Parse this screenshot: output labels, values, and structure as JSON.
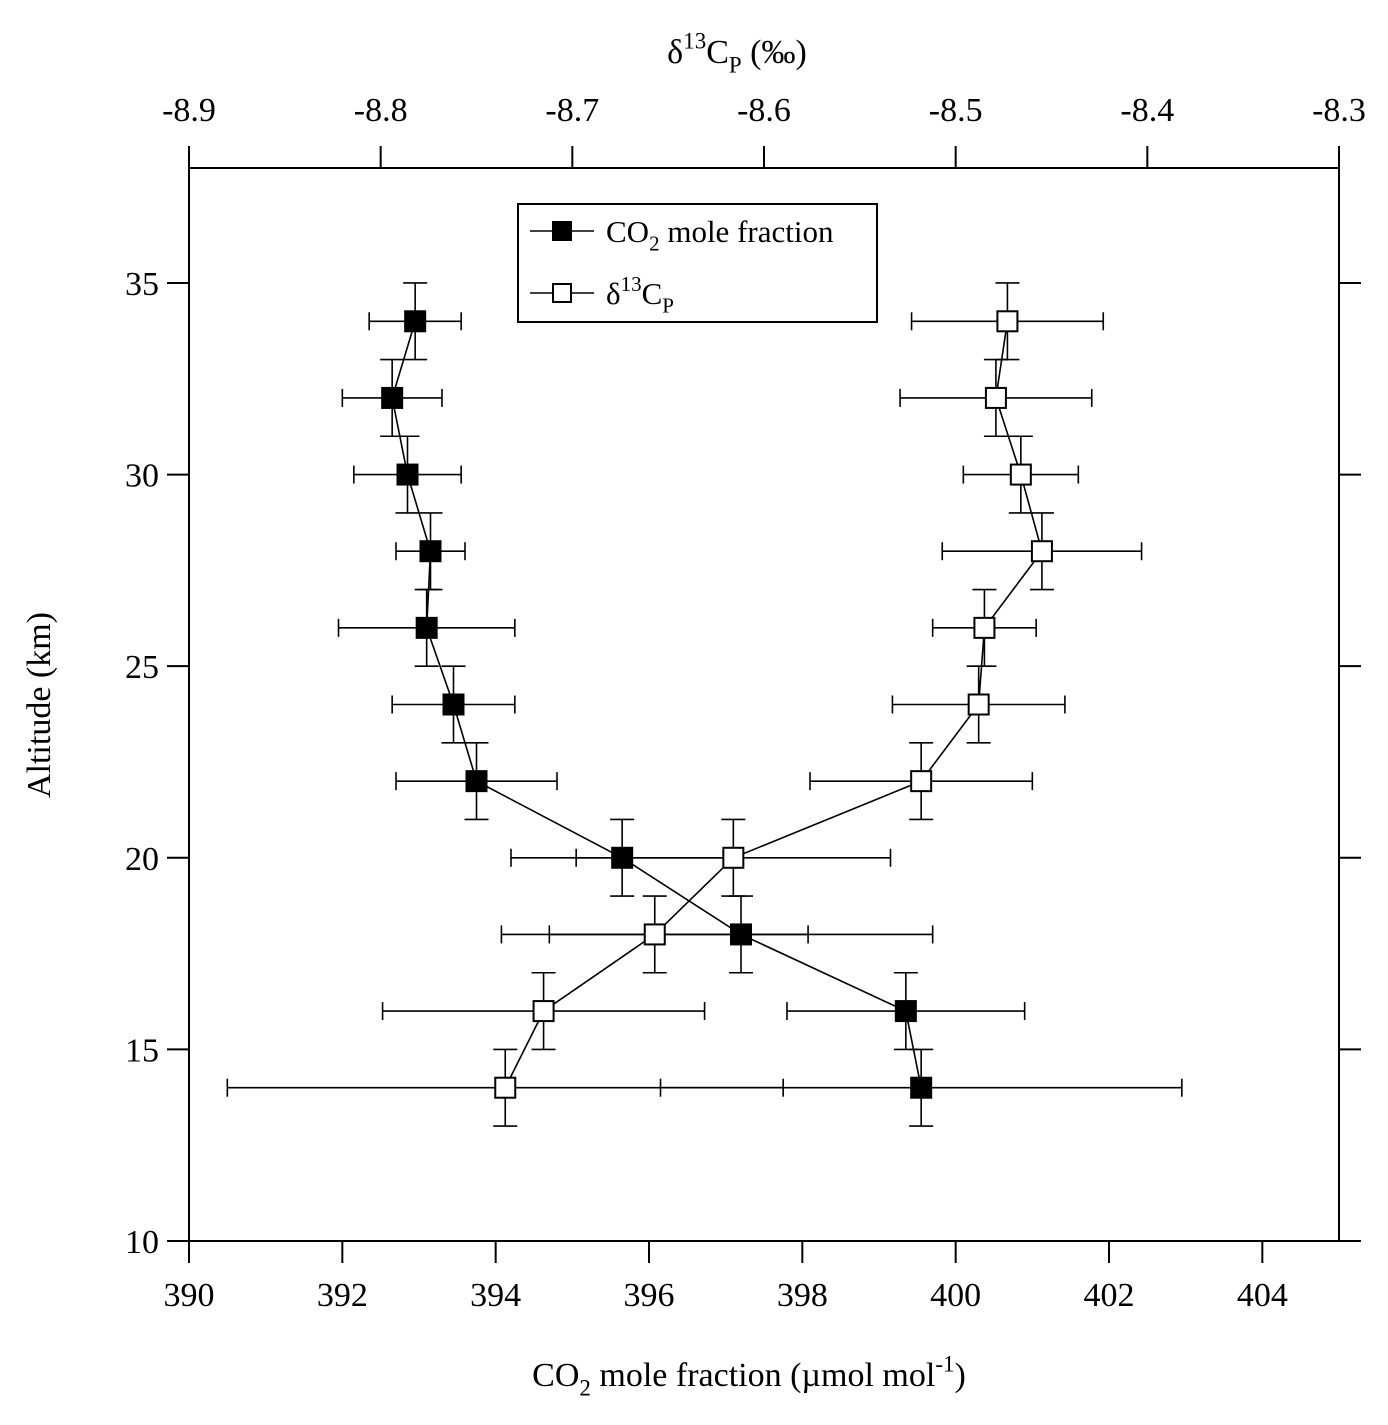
{
  "chart_data": {
    "type": "scatter",
    "ylabel": "Altitude (km)",
    "ylim": [
      10,
      38
    ],
    "yticks": [
      10,
      15,
      20,
      25,
      30,
      35
    ],
    "bottom_axis": {
      "label_main": "CO",
      "label_sub": "2",
      "label_rest": " mole fraction (µmol mol",
      "label_sup": "-1",
      "label_end": ")",
      "lim": [
        390,
        405
      ],
      "ticks": [
        390,
        392,
        394,
        396,
        398,
        400,
        402,
        404
      ]
    },
    "top_axis": {
      "label_main": "δ",
      "label_sup": "13",
      "label_rest": "C",
      "label_sub": "P",
      "label_end": " (‰)",
      "lim": [
        -8.9,
        -8.3
      ],
      "ticks": [
        -8.9,
        -8.8,
        -8.7,
        -8.6,
        -8.5,
        -8.4,
        -8.3
      ]
    },
    "legend": {
      "position": "top-center",
      "entries": [
        {
          "parts": [
            {
              "t": "CO"
            },
            {
              "t": "2",
              "sub": true
            },
            {
              "t": " mole fraction"
            }
          ],
          "marker": "filled-square"
        },
        {
          "parts": [
            {
              "t": "δ"
            },
            {
              "t": "13",
              "sup": true
            },
            {
              "t": "C"
            },
            {
              "t": "P",
              "sub": true
            }
          ],
          "marker": "open-square"
        }
      ]
    },
    "series": [
      {
        "axis": "bottom",
        "marker": "filled",
        "altitude": [
          34,
          32,
          30,
          28,
          26,
          24,
          22,
          20,
          18,
          16,
          14
        ],
        "x": [
          392.95,
          392.65,
          392.85,
          393.15,
          393.1,
          393.45,
          393.75,
          395.65,
          397.2,
          399.35,
          399.55
        ],
        "x_err": [
          0.6,
          0.65,
          0.7,
          0.45,
          1.15,
          0.8,
          1.05,
          1.45,
          2.5,
          1.55,
          3.4
        ],
        "alt_err": 1
      },
      {
        "axis": "top",
        "marker": "open",
        "altitude": [
          34,
          32,
          30,
          28,
          26,
          24,
          22,
          20,
          18,
          16,
          14
        ],
        "x": [
          -8.473,
          -8.479,
          -8.466,
          -8.455,
          -8.485,
          -8.488,
          -8.518,
          -8.616,
          -8.657,
          -8.715,
          -8.735
        ],
        "x_err": [
          0.05,
          0.05,
          0.03,
          0.052,
          0.027,
          0.045,
          0.058,
          0.082,
          0.08,
          0.084,
          0.145
        ],
        "alt_err": 1
      }
    ]
  }
}
